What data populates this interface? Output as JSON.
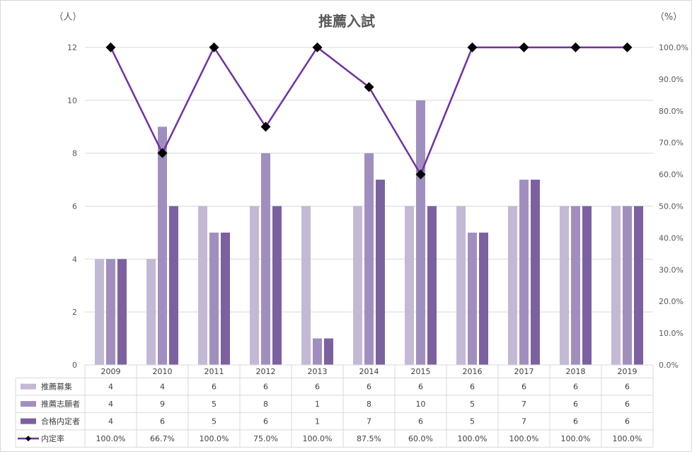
{
  "chart_data": {
    "type": "bar+line",
    "title": "推薦入試",
    "y_left_unit": "（人）",
    "y_right_unit": "（%）",
    "categories": [
      "2009",
      "2010",
      "2011",
      "2012",
      "2013",
      "2014",
      "2015",
      "2016",
      "2017",
      "2018",
      "2019"
    ],
    "series": [
      {
        "name": "推薦募集",
        "type": "bar",
        "axis": "left",
        "color": "#c3b9d5",
        "values": [
          4,
          4,
          6,
          6,
          6,
          6,
          6,
          6,
          6,
          6,
          6
        ]
      },
      {
        "name": "推薦志願者",
        "type": "bar",
        "axis": "left",
        "color": "#a08fbe",
        "values": [
          4,
          9,
          5,
          8,
          1,
          8,
          10,
          5,
          7,
          6,
          6
        ]
      },
      {
        "name": "合格内定者",
        "type": "bar",
        "axis": "left",
        "color": "#7b61a0",
        "values": [
          4,
          6,
          5,
          6,
          1,
          7,
          6,
          5,
          7,
          6,
          6
        ]
      },
      {
        "name": "内定率",
        "type": "line",
        "axis": "right",
        "color": "#7030a0",
        "marker_color": "#000000",
        "values": [
          100.0,
          66.7,
          100.0,
          75.0,
          100.0,
          87.5,
          60.0,
          100.0,
          100.0,
          100.0,
          100.0
        ],
        "labels": [
          "100.0%",
          "66.7%",
          "100.0%",
          "75.0%",
          "100.0%",
          "87.5%",
          "60.0%",
          "100.0%",
          "100.0%",
          "100.0%",
          "100.0%"
        ]
      }
    ],
    "y_left": {
      "min": 0,
      "max": 12,
      "ticks": [
        "0",
        "2",
        "4",
        "6",
        "8",
        "10",
        "12"
      ]
    },
    "y_right": {
      "min": 0,
      "max": 100,
      "ticks": [
        "0.0%",
        "10.0%",
        "20.0%",
        "30.0%",
        "40.0%",
        "50.0%",
        "60.0%",
        "70.0%",
        "80.0%",
        "90.0%",
        "100.0%"
      ]
    },
    "grid": true,
    "legend": "data-table"
  }
}
